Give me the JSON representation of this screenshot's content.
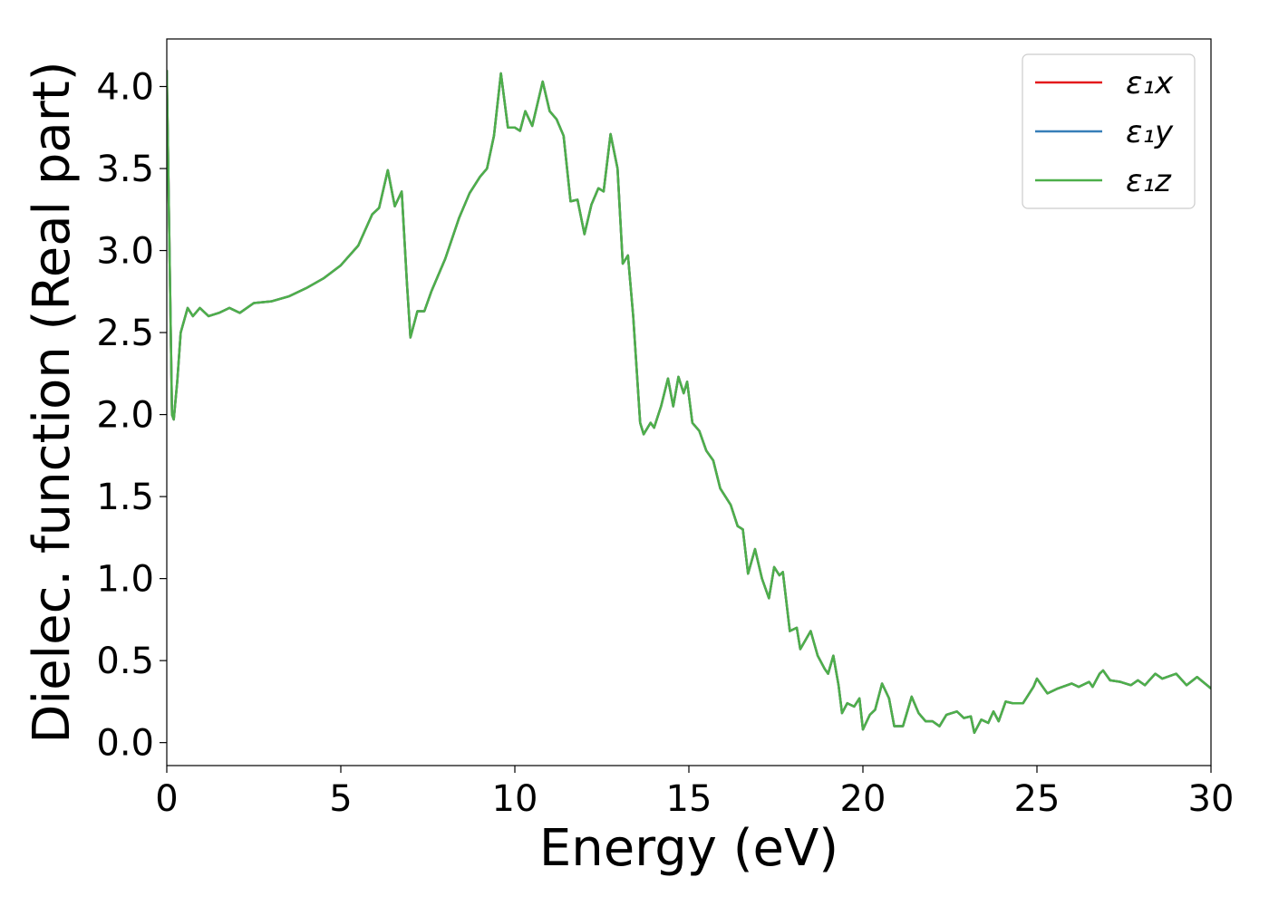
{
  "chart_data": {
    "type": "line",
    "xlabel": "Energy (eV)",
    "ylabel": "Dielec. function (Real part)",
    "xlim": [
      0,
      30
    ],
    "ylim": [
      -0.14,
      4.29
    ],
    "xticks": [
      0,
      5,
      10,
      15,
      20,
      25,
      30
    ],
    "yticks": [
      {
        "value": 0,
        "label": "0.0"
      },
      0.5,
      {
        "value": 1,
        "label": "1.0"
      },
      1.5,
      {
        "value": 2,
        "label": "2.0"
      },
      2.5,
      {
        "value": 3,
        "label": "3.0"
      },
      3.5,
      {
        "value": 4,
        "label": "4.0"
      }
    ],
    "legend": "upper right",
    "grid": false,
    "x": [
      0,
      0.15,
      0.2,
      0.3,
      0.4,
      0.6,
      0.75,
      0.95,
      1.2,
      1.5,
      1.8,
      2.1,
      2.5,
      3,
      3.5,
      4,
      4.5,
      5,
      5.5,
      5.9,
      6.1,
      6.35,
      6.55,
      6.75,
      6.9,
      7.0,
      7.2,
      7.4,
      7.6,
      8,
      8.4,
      8.7,
      9.0,
      9.2,
      9.4,
      9.6,
      9.8,
      10.0,
      10.15,
      10.3,
      10.5,
      10.8,
      11.0,
      11.2,
      11.4,
      11.6,
      11.8,
      12.0,
      12.2,
      12.4,
      12.55,
      12.75,
      12.95,
      13.1,
      13.25,
      13.4,
      13.6,
      13.7,
      13.9,
      14.0,
      14.2,
      14.4,
      14.55,
      14.7,
      14.85,
      14.95,
      15.1,
      15.3,
      15.5,
      15.7,
      15.9,
      16.2,
      16.4,
      16.55,
      16.7,
      16.9,
      17.1,
      17.3,
      17.45,
      17.6,
      17.7,
      17.9,
      18.1,
      18.2,
      18.5,
      18.7,
      18.9,
      19.0,
      19.15,
      19.3,
      19.4,
      19.55,
      19.75,
      19.9,
      20.0,
      20.2,
      20.35,
      20.55,
      20.75,
      20.9,
      21.15,
      21.4,
      21.6,
      21.8,
      22.0,
      22.2,
      22.4,
      22.7,
      22.9,
      23.1,
      23.2,
      23.4,
      23.6,
      23.75,
      23.9,
      24.1,
      24.3,
      24.6,
      24.9,
      25.0,
      25.3,
      25.6,
      26.0,
      26.2,
      26.5,
      26.6,
      26.8,
      26.9,
      27.1,
      27.4,
      27.7,
      27.9,
      28.1,
      28.4,
      28.6,
      29.0,
      29.3,
      29.6,
      30.0
    ],
    "series": [
      {
        "name": "ε₁x",
        "color": "#e41a1c",
        "values": [
          4.1,
          2.0,
          1.97,
          2.2,
          2.5,
          2.65,
          2.6,
          2.65,
          2.6,
          2.62,
          2.65,
          2.62,
          2.68,
          2.69,
          2.72,
          2.77,
          2.83,
          2.91,
          3.03,
          3.22,
          3.26,
          3.49,
          3.27,
          3.36,
          2.8,
          2.47,
          2.63,
          2.63,
          2.75,
          2.95,
          3.2,
          3.35,
          3.45,
          3.5,
          3.7,
          4.08,
          3.75,
          3.75,
          3.73,
          3.85,
          3.76,
          4.03,
          3.85,
          3.8,
          3.7,
          3.3,
          3.31,
          3.1,
          3.28,
          3.38,
          3.36,
          3.71,
          3.5,
          2.92,
          2.97,
          2.6,
          1.95,
          1.88,
          1.95,
          1.92,
          2.05,
          2.22,
          2.05,
          2.23,
          2.13,
          2.2,
          1.95,
          1.9,
          1.78,
          1.72,
          1.55,
          1.45,
          1.32,
          1.3,
          1.03,
          1.18,
          1.0,
          0.88,
          1.07,
          1.02,
          1.04,
          0.68,
          0.7,
          0.57,
          0.68,
          0.53,
          0.45,
          0.42,
          0.53,
          0.35,
          0.18,
          0.24,
          0.22,
          0.27,
          0.08,
          0.17,
          0.2,
          0.36,
          0.27,
          0.1,
          0.1,
          0.28,
          0.18,
          0.13,
          0.13,
          0.1,
          0.17,
          0.19,
          0.15,
          0.16,
          0.06,
          0.14,
          0.12,
          0.19,
          0.13,
          0.25,
          0.24,
          0.24,
          0.34,
          0.39,
          0.3,
          0.33,
          0.36,
          0.34,
          0.37,
          0.34,
          0.42,
          0.44,
          0.38,
          0.37,
          0.35,
          0.38,
          0.35,
          0.42,
          0.39,
          0.42,
          0.35,
          0.4,
          0.33
        ]
      },
      {
        "name": "ε₁y",
        "color": "#377eb8",
        "values": [
          4.1,
          2.0,
          1.97,
          2.2,
          2.5,
          2.65,
          2.6,
          2.65,
          2.6,
          2.62,
          2.65,
          2.62,
          2.68,
          2.69,
          2.72,
          2.77,
          2.83,
          2.91,
          3.03,
          3.22,
          3.26,
          3.49,
          3.27,
          3.36,
          2.8,
          2.47,
          2.63,
          2.63,
          2.75,
          2.95,
          3.2,
          3.35,
          3.45,
          3.5,
          3.7,
          4.08,
          3.75,
          3.75,
          3.73,
          3.85,
          3.76,
          4.03,
          3.85,
          3.8,
          3.7,
          3.3,
          3.31,
          3.1,
          3.28,
          3.38,
          3.36,
          3.71,
          3.5,
          2.92,
          2.97,
          2.6,
          1.95,
          1.88,
          1.95,
          1.92,
          2.05,
          2.22,
          2.05,
          2.23,
          2.13,
          2.2,
          1.95,
          1.9,
          1.78,
          1.72,
          1.55,
          1.45,
          1.32,
          1.3,
          1.03,
          1.18,
          1.0,
          0.88,
          1.07,
          1.02,
          1.04,
          0.68,
          0.7,
          0.57,
          0.68,
          0.53,
          0.45,
          0.42,
          0.53,
          0.35,
          0.18,
          0.24,
          0.22,
          0.27,
          0.08,
          0.17,
          0.2,
          0.36,
          0.27,
          0.1,
          0.1,
          0.28,
          0.18,
          0.13,
          0.13,
          0.1,
          0.17,
          0.19,
          0.15,
          0.16,
          0.06,
          0.14,
          0.12,
          0.19,
          0.13,
          0.25,
          0.24,
          0.24,
          0.34,
          0.39,
          0.3,
          0.33,
          0.36,
          0.34,
          0.37,
          0.34,
          0.42,
          0.44,
          0.38,
          0.37,
          0.35,
          0.38,
          0.35,
          0.42,
          0.39,
          0.42,
          0.35,
          0.4,
          0.33
        ]
      },
      {
        "name": "ε₁z",
        "color": "#4daf4a",
        "values": [
          4.1,
          2.0,
          1.97,
          2.2,
          2.5,
          2.65,
          2.6,
          2.65,
          2.6,
          2.62,
          2.65,
          2.62,
          2.68,
          2.69,
          2.72,
          2.77,
          2.83,
          2.91,
          3.03,
          3.22,
          3.26,
          3.49,
          3.27,
          3.36,
          2.8,
          2.47,
          2.63,
          2.63,
          2.75,
          2.95,
          3.2,
          3.35,
          3.45,
          3.5,
          3.7,
          4.08,
          3.75,
          3.75,
          3.73,
          3.85,
          3.76,
          4.03,
          3.85,
          3.8,
          3.7,
          3.3,
          3.31,
          3.1,
          3.28,
          3.38,
          3.36,
          3.71,
          3.5,
          2.92,
          2.97,
          2.6,
          1.95,
          1.88,
          1.95,
          1.92,
          2.05,
          2.22,
          2.05,
          2.23,
          2.13,
          2.2,
          1.95,
          1.9,
          1.78,
          1.72,
          1.55,
          1.45,
          1.32,
          1.3,
          1.03,
          1.18,
          1.0,
          0.88,
          1.07,
          1.02,
          1.04,
          0.68,
          0.7,
          0.57,
          0.68,
          0.53,
          0.45,
          0.42,
          0.53,
          0.35,
          0.18,
          0.24,
          0.22,
          0.27,
          0.08,
          0.17,
          0.2,
          0.36,
          0.27,
          0.1,
          0.1,
          0.28,
          0.18,
          0.13,
          0.13,
          0.1,
          0.17,
          0.19,
          0.15,
          0.16,
          0.06,
          0.14,
          0.12,
          0.19,
          0.13,
          0.25,
          0.24,
          0.24,
          0.34,
          0.39,
          0.3,
          0.33,
          0.36,
          0.34,
          0.37,
          0.34,
          0.42,
          0.44,
          0.38,
          0.37,
          0.35,
          0.38,
          0.35,
          0.42,
          0.39,
          0.42,
          0.35,
          0.4,
          0.33
        ]
      }
    ]
  }
}
